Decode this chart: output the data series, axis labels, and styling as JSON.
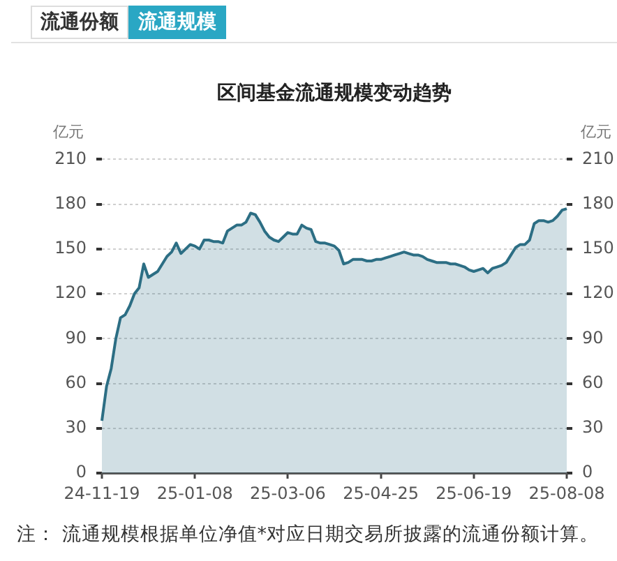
{
  "chart_data": {
    "type": "area",
    "title": "区间基金流通规模变动趋势",
    "ylabel": "亿元",
    "y2label": "亿元",
    "annotations": [
      "流通份额",
      "流通规模",
      "注： 流通规模根据单位净值*对应日期交易所披露的流通份额计算。"
    ],
    "categories": [
      "24-11-19",
      null,
      null,
      null,
      null,
      null,
      null,
      null,
      null,
      null,
      null,
      null,
      null,
      null,
      null,
      null,
      null,
      null,
      null,
      null,
      "25-01-08",
      null,
      null,
      null,
      null,
      null,
      null,
      null,
      null,
      null,
      null,
      null,
      null,
      null,
      null,
      null,
      null,
      null,
      null,
      null,
      "25-03-06",
      null,
      null,
      null,
      null,
      null,
      null,
      null,
      null,
      null,
      null,
      null,
      null,
      null,
      null,
      null,
      null,
      null,
      null,
      null,
      "25-04-25",
      null,
      null,
      null,
      null,
      null,
      null,
      null,
      null,
      null,
      null,
      null,
      null,
      null,
      null,
      null,
      null,
      null,
      null,
      null,
      "25-06-19",
      null,
      null,
      null,
      null,
      null,
      null,
      null,
      null,
      null,
      null,
      null,
      null,
      null,
      null,
      null,
      null,
      null,
      null,
      null,
      "25-08-08"
    ],
    "values": [
      35,
      58,
      70,
      90,
      104,
      106,
      112,
      120,
      124,
      140,
      131,
      133,
      135,
      140,
      145,
      148,
      154,
      147,
      150,
      153,
      152,
      150,
      156,
      156,
      155,
      155,
      154,
      162,
      164,
      166,
      166,
      168,
      174,
      173,
      168,
      162,
      158,
      156,
      155,
      158,
      161,
      160,
      160,
      166,
      164,
      163,
      155,
      154,
      154,
      153,
      152,
      149,
      140,
      141,
      143,
      143,
      143,
      142,
      142,
      143,
      143,
      144,
      145,
      146,
      147,
      148,
      147,
      146,
      146,
      145,
      143,
      142,
      141,
      141,
      141,
      140,
      140,
      139,
      138,
      136,
      135,
      136,
      137,
      134,
      137,
      138,
      139,
      141,
      146,
      151,
      153,
      153,
      156,
      167,
      169,
      169,
      168,
      169,
      172,
      176,
      177
    ],
    "color": "#2c6e84",
    "ylim": [
      0,
      210
    ],
    "yticks": [
      0,
      30,
      60,
      90,
      120,
      150,
      180,
      210
    ],
    "y2lim": [
      0,
      210
    ],
    "y2ticks": [
      0,
      30,
      60,
      90,
      120,
      150,
      180,
      210
    ],
    "grid": "y",
    "legend": false,
    "marker": "none"
  }
}
